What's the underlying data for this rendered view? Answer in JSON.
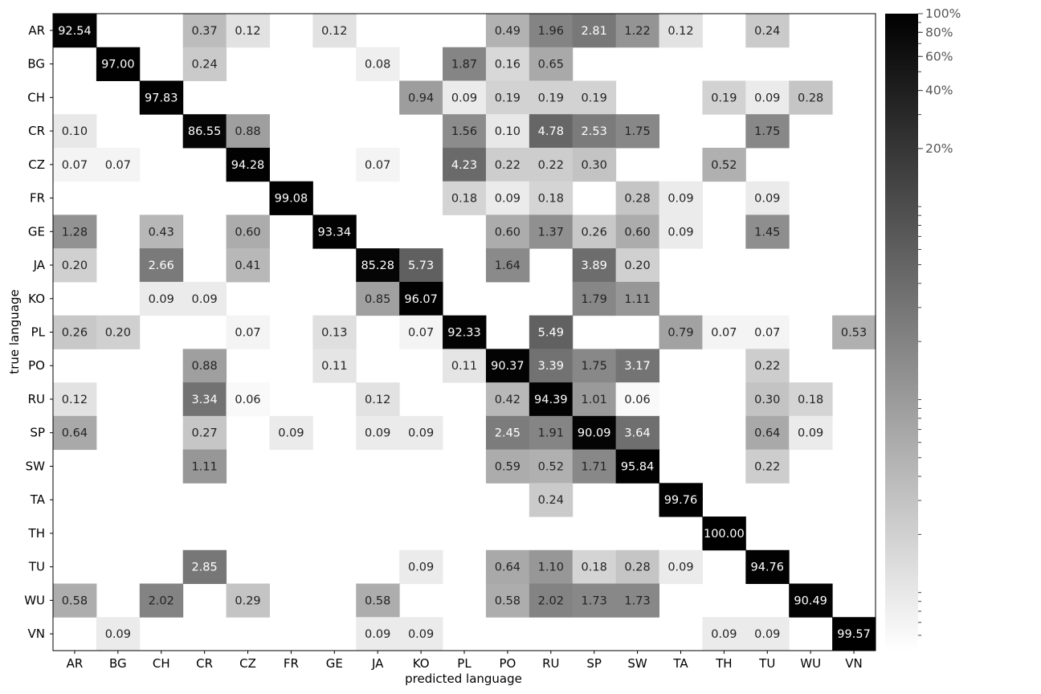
{
  "chart_data": {
    "type": "heatmap",
    "title": "",
    "xlabel": "predicted language",
    "ylabel": "true language",
    "x_categories": [
      "AR",
      "BG",
      "CH",
      "CR",
      "CZ",
      "FR",
      "GE",
      "JA",
      "KO",
      "PL",
      "PO",
      "RU",
      "SP",
      "SW",
      "TA",
      "TH",
      "TU",
      "WU",
      "VN"
    ],
    "y_categories": [
      "AR",
      "BG",
      "CH",
      "CR",
      "CZ",
      "FR",
      "GE",
      "JA",
      "KO",
      "PL",
      "PO",
      "RU",
      "SP",
      "SW",
      "TA",
      "TH",
      "TU",
      "WU",
      "VN"
    ],
    "color_scale": "log",
    "colormap": "white-to-black",
    "colorbar_ticks": [
      "100%",
      "80%",
      "60%",
      "40%",
      "20%"
    ],
    "colorbar_tick_values": [
      100,
      80,
      60,
      40,
      20
    ],
    "cells": [
      {
        "row": "AR",
        "col": "AR",
        "value": 92.54
      },
      {
        "row": "AR",
        "col": "CR",
        "value": 0.37
      },
      {
        "row": "AR",
        "col": "CZ",
        "value": 0.12
      },
      {
        "row": "AR",
        "col": "GE",
        "value": 0.12
      },
      {
        "row": "AR",
        "col": "PO",
        "value": 0.49
      },
      {
        "row": "AR",
        "col": "RU",
        "value": 1.96
      },
      {
        "row": "AR",
        "col": "SP",
        "value": 2.81
      },
      {
        "row": "AR",
        "col": "SW",
        "value": 1.22
      },
      {
        "row": "AR",
        "col": "TA",
        "value": 0.12
      },
      {
        "row": "AR",
        "col": "TU",
        "value": 0.24
      },
      {
        "row": "BG",
        "col": "BG",
        "value": 97.0
      },
      {
        "row": "BG",
        "col": "CR",
        "value": 0.24
      },
      {
        "row": "BG",
        "col": "JA",
        "value": 0.08
      },
      {
        "row": "BG",
        "col": "PL",
        "value": 1.87
      },
      {
        "row": "BG",
        "col": "PO",
        "value": 0.16
      },
      {
        "row": "BG",
        "col": "RU",
        "value": 0.65
      },
      {
        "row": "CH",
        "col": "CH",
        "value": 97.83
      },
      {
        "row": "CH",
        "col": "KO",
        "value": 0.94
      },
      {
        "row": "CH",
        "col": "PL",
        "value": 0.09
      },
      {
        "row": "CH",
        "col": "PO",
        "value": 0.19
      },
      {
        "row": "CH",
        "col": "RU",
        "value": 0.19
      },
      {
        "row": "CH",
        "col": "SP",
        "value": 0.19
      },
      {
        "row": "CH",
        "col": "TH",
        "value": 0.19
      },
      {
        "row": "CH",
        "col": "TU",
        "value": 0.09
      },
      {
        "row": "CH",
        "col": "WU",
        "value": 0.28
      },
      {
        "row": "CR",
        "col": "AR",
        "value": 0.1
      },
      {
        "row": "CR",
        "col": "CR",
        "value": 86.55
      },
      {
        "row": "CR",
        "col": "CZ",
        "value": 0.88
      },
      {
        "row": "CR",
        "col": "PL",
        "value": 1.56
      },
      {
        "row": "CR",
        "col": "PO",
        "value": 0.1
      },
      {
        "row": "CR",
        "col": "RU",
        "value": 4.78
      },
      {
        "row": "CR",
        "col": "SP",
        "value": 2.53
      },
      {
        "row": "CR",
        "col": "SW",
        "value": 1.75
      },
      {
        "row": "CR",
        "col": "TU",
        "value": 1.75
      },
      {
        "row": "CZ",
        "col": "AR",
        "value": 0.07
      },
      {
        "row": "CZ",
        "col": "BG",
        "value": 0.07
      },
      {
        "row": "CZ",
        "col": "CZ",
        "value": 94.28
      },
      {
        "row": "CZ",
        "col": "JA",
        "value": 0.07
      },
      {
        "row": "CZ",
        "col": "PL",
        "value": 4.23
      },
      {
        "row": "CZ",
        "col": "PO",
        "value": 0.22
      },
      {
        "row": "CZ",
        "col": "RU",
        "value": 0.22
      },
      {
        "row": "CZ",
        "col": "SP",
        "value": 0.3
      },
      {
        "row": "CZ",
        "col": "TH",
        "value": 0.52
      },
      {
        "row": "FR",
        "col": "FR",
        "value": 99.08
      },
      {
        "row": "FR",
        "col": "PL",
        "value": 0.18
      },
      {
        "row": "FR",
        "col": "PO",
        "value": 0.09
      },
      {
        "row": "FR",
        "col": "RU",
        "value": 0.18
      },
      {
        "row": "FR",
        "col": "SW",
        "value": 0.28
      },
      {
        "row": "FR",
        "col": "TA",
        "value": 0.09
      },
      {
        "row": "FR",
        "col": "TU",
        "value": 0.09
      },
      {
        "row": "GE",
        "col": "AR",
        "value": 1.28
      },
      {
        "row": "GE",
        "col": "CH",
        "value": 0.43
      },
      {
        "row": "GE",
        "col": "CZ",
        "value": 0.6
      },
      {
        "row": "GE",
        "col": "GE",
        "value": 93.34
      },
      {
        "row": "GE",
        "col": "PO",
        "value": 0.6
      },
      {
        "row": "GE",
        "col": "RU",
        "value": 1.37
      },
      {
        "row": "GE",
        "col": "SP",
        "value": 0.26
      },
      {
        "row": "GE",
        "col": "SW",
        "value": 0.6
      },
      {
        "row": "GE",
        "col": "TA",
        "value": 0.09
      },
      {
        "row": "GE",
        "col": "TU",
        "value": 1.45
      },
      {
        "row": "JA",
        "col": "AR",
        "value": 0.2
      },
      {
        "row": "JA",
        "col": "CH",
        "value": 2.66
      },
      {
        "row": "JA",
        "col": "CZ",
        "value": 0.41
      },
      {
        "row": "JA",
        "col": "JA",
        "value": 85.28
      },
      {
        "row": "JA",
        "col": "KO",
        "value": 5.73
      },
      {
        "row": "JA",
        "col": "PO",
        "value": 1.64
      },
      {
        "row": "JA",
        "col": "SP",
        "value": 3.89
      },
      {
        "row": "JA",
        "col": "SW",
        "value": 0.2
      },
      {
        "row": "KO",
        "col": "CH",
        "value": 0.09
      },
      {
        "row": "KO",
        "col": "CR",
        "value": 0.09
      },
      {
        "row": "KO",
        "col": "JA",
        "value": 0.85
      },
      {
        "row": "KO",
        "col": "KO",
        "value": 96.07
      },
      {
        "row": "KO",
        "col": "SP",
        "value": 1.79
      },
      {
        "row": "KO",
        "col": "SW",
        "value": 1.11
      },
      {
        "row": "PL",
        "col": "AR",
        "value": 0.26
      },
      {
        "row": "PL",
        "col": "BG",
        "value": 0.2
      },
      {
        "row": "PL",
        "col": "CZ",
        "value": 0.07
      },
      {
        "row": "PL",
        "col": "GE",
        "value": 0.13
      },
      {
        "row": "PL",
        "col": "KO",
        "value": 0.07
      },
      {
        "row": "PL",
        "col": "PL",
        "value": 92.33
      },
      {
        "row": "PL",
        "col": "RU",
        "value": 5.49
      },
      {
        "row": "PL",
        "col": "TA",
        "value": 0.79
      },
      {
        "row": "PL",
        "col": "TH",
        "value": 0.07
      },
      {
        "row": "PL",
        "col": "TU",
        "value": 0.07
      },
      {
        "row": "PL",
        "col": "VN",
        "value": 0.53
      },
      {
        "row": "PO",
        "col": "CR",
        "value": 0.88
      },
      {
        "row": "PO",
        "col": "GE",
        "value": 0.11
      },
      {
        "row": "PO",
        "col": "PL",
        "value": 0.11
      },
      {
        "row": "PO",
        "col": "PO",
        "value": 90.37
      },
      {
        "row": "PO",
        "col": "RU",
        "value": 3.39
      },
      {
        "row": "PO",
        "col": "SP",
        "value": 1.75
      },
      {
        "row": "PO",
        "col": "SW",
        "value": 3.17
      },
      {
        "row": "PO",
        "col": "TU",
        "value": 0.22
      },
      {
        "row": "RU",
        "col": "AR",
        "value": 0.12
      },
      {
        "row": "RU",
        "col": "CR",
        "value": 3.34
      },
      {
        "row": "RU",
        "col": "CZ",
        "value": 0.06
      },
      {
        "row": "RU",
        "col": "JA",
        "value": 0.12
      },
      {
        "row": "RU",
        "col": "PO",
        "value": 0.42
      },
      {
        "row": "RU",
        "col": "RU",
        "value": 94.39
      },
      {
        "row": "RU",
        "col": "SP",
        "value": 1.01
      },
      {
        "row": "RU",
        "col": "SW",
        "value": 0.06
      },
      {
        "row": "RU",
        "col": "TU",
        "value": 0.3
      },
      {
        "row": "RU",
        "col": "WU",
        "value": 0.18
      },
      {
        "row": "SP",
        "col": "AR",
        "value": 0.64
      },
      {
        "row": "SP",
        "col": "CR",
        "value": 0.27
      },
      {
        "row": "SP",
        "col": "FR",
        "value": 0.09
      },
      {
        "row": "SP",
        "col": "JA",
        "value": 0.09
      },
      {
        "row": "SP",
        "col": "KO",
        "value": 0.09
      },
      {
        "row": "SP",
        "col": "PO",
        "value": 2.45
      },
      {
        "row": "SP",
        "col": "RU",
        "value": 1.91
      },
      {
        "row": "SP",
        "col": "SP",
        "value": 90.09
      },
      {
        "row": "SP",
        "col": "SW",
        "value": 3.64
      },
      {
        "row": "SP",
        "col": "TU",
        "value": 0.64
      },
      {
        "row": "SP",
        "col": "WU",
        "value": 0.09
      },
      {
        "row": "SW",
        "col": "CR",
        "value": 1.11
      },
      {
        "row": "SW",
        "col": "PO",
        "value": 0.59
      },
      {
        "row": "SW",
        "col": "RU",
        "value": 0.52
      },
      {
        "row": "SW",
        "col": "SP",
        "value": 1.71
      },
      {
        "row": "SW",
        "col": "SW",
        "value": 95.84
      },
      {
        "row": "SW",
        "col": "TU",
        "value": 0.22
      },
      {
        "row": "TA",
        "col": "RU",
        "value": 0.24
      },
      {
        "row": "TA",
        "col": "TA",
        "value": 99.76
      },
      {
        "row": "TH",
        "col": "TH",
        "value": 100.0
      },
      {
        "row": "TU",
        "col": "CR",
        "value": 2.85
      },
      {
        "row": "TU",
        "col": "KO",
        "value": 0.09
      },
      {
        "row": "TU",
        "col": "PO",
        "value": 0.64
      },
      {
        "row": "TU",
        "col": "RU",
        "value": 1.1
      },
      {
        "row": "TU",
        "col": "SP",
        "value": 0.18
      },
      {
        "row": "TU",
        "col": "SW",
        "value": 0.28
      },
      {
        "row": "TU",
        "col": "TA",
        "value": 0.09
      },
      {
        "row": "TU",
        "col": "TU",
        "value": 94.76
      },
      {
        "row": "WU",
        "col": "AR",
        "value": 0.58
      },
      {
        "row": "WU",
        "col": "CH",
        "value": 2.02
      },
      {
        "row": "WU",
        "col": "CZ",
        "value": 0.29
      },
      {
        "row": "WU",
        "col": "JA",
        "value": 0.58
      },
      {
        "row": "WU",
        "col": "PO",
        "value": 0.58
      },
      {
        "row": "WU",
        "col": "RU",
        "value": 2.02
      },
      {
        "row": "WU",
        "col": "SP",
        "value": 1.73
      },
      {
        "row": "WU",
        "col": "SW",
        "value": 1.73
      },
      {
        "row": "WU",
        "col": "WU",
        "value": 90.49
      },
      {
        "row": "VN",
        "col": "BG",
        "value": 0.09
      },
      {
        "row": "VN",
        "col": "JA",
        "value": 0.09
      },
      {
        "row": "VN",
        "col": "KO",
        "value": 0.09
      },
      {
        "row": "VN",
        "col": "TH",
        "value": 0.09
      },
      {
        "row": "VN",
        "col": "TU",
        "value": 0.09
      },
      {
        "row": "VN",
        "col": "VN",
        "value": 99.57
      }
    ]
  }
}
